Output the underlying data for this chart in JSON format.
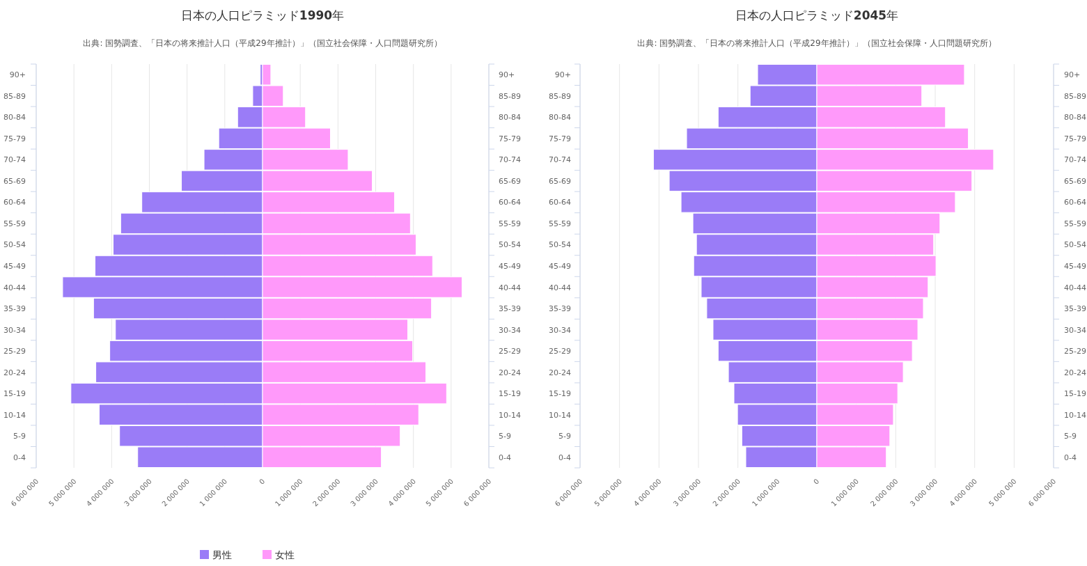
{
  "chart_data": [
    {
      "type": "bar",
      "orientation": "horizontal",
      "title": "日本の人口ピラミッド**1990**年",
      "subtitle": "出典: 国勢調査、「日本の将来推計人口（平成29年推計）」（国立社会保障・人口問題研究所）",
      "categories": [
        "90+",
        "85-89",
        "80-84",
        "75-79",
        "70-74",
        "65-69",
        "60-64",
        "55-59",
        "50-54",
        "45-49",
        "40-44",
        "35-39",
        "30-34",
        "25-29",
        "20-24",
        "15-19",
        "10-14",
        "5-9",
        "0-4"
      ],
      "series": [
        {
          "name": "男性",
          "color": "#9a7cf7",
          "values": [
            -60000,
            -260000,
            -660000,
            -1160000,
            -1550000,
            -2150000,
            -3200000,
            -3760000,
            -3960000,
            -4440000,
            -5300000,
            -4480000,
            -3900000,
            -4050000,
            -4420000,
            -5080000,
            -4330000,
            -3790000,
            -3310000
          ]
        },
        {
          "name": "女性",
          "color": "#ff99fa",
          "values": [
            220000,
            550000,
            1140000,
            1800000,
            2270000,
            2910000,
            3500000,
            3920000,
            4070000,
            4510000,
            5290000,
            4480000,
            3850000,
            3980000,
            4330000,
            4880000,
            4140000,
            3650000,
            3150000
          ]
        }
      ],
      "xlim": [
        -6000000,
        6000000
      ],
      "xticks": [
        {
          "value": -6000000,
          "label": "6 000 000"
        },
        {
          "value": -5000000,
          "label": "5 000 000"
        },
        {
          "value": -4000000,
          "label": "4 000 000"
        },
        {
          "value": -3000000,
          "label": "3 000 000"
        },
        {
          "value": -2000000,
          "label": "2 000 000"
        },
        {
          "value": -1000000,
          "label": "1 000 000"
        },
        0,
        {
          "value": 1000000,
          "label": "1 000 000"
        },
        {
          "value": 2000000,
          "label": "2 000 000"
        },
        {
          "value": 3000000,
          "label": "3 000 000"
        },
        {
          "value": 4000000,
          "label": "4 000 000"
        },
        {
          "value": 5000000,
          "label": "5 000 000"
        },
        {
          "value": 6000000,
          "label": "6 000 000"
        }
      ],
      "grid": "x",
      "legend": "bottom",
      "stacked": true
    },
    {
      "type": "bar",
      "orientation": "horizontal",
      "title": "日本の人口ピラミッド**2045**年",
      "subtitle": "出典: 国勢調査、「日本の将来推計人口（平成29年推計）」（国立社会保障・人口問題研究所）",
      "categories": [
        "90+",
        "85-89",
        "80-84",
        "75-79",
        "70-74",
        "65-69",
        "60-64",
        "55-59",
        "50-54",
        "45-49",
        "40-44",
        "35-39",
        "30-34",
        "25-29",
        "20-24",
        "15-19",
        "10-14",
        "5-9",
        "0-4"
      ],
      "series": [
        {
          "color": "#9a7cf7",
          "values": [
            -1500000,
            -1690000,
            -2500000,
            -3300000,
            -4140000,
            -3740000,
            -3440000,
            -3140000,
            -3050000,
            -3120000,
            -2930000,
            -2790000,
            -2630000,
            -2500000,
            -2240000,
            -2100000,
            -2010000,
            -1900000,
            -1800000
          ]
        },
        {
          "color": "#ff99fa",
          "values": [
            3740000,
            2660000,
            3260000,
            3840000,
            4480000,
            3930000,
            3510000,
            3120000,
            2960000,
            3020000,
            2820000,
            2700000,
            2560000,
            2420000,
            2190000,
            2050000,
            1940000,
            1850000,
            1760000
          ]
        }
      ],
      "xlim": [
        -6000000,
        6000000
      ],
      "xticks": [
        {
          "value": -6000000,
          "label": "6 000 000"
        },
        {
          "value": -5000000,
          "label": "5 000 000"
        },
        {
          "value": -4000000,
          "label": "4 000 000"
        },
        {
          "value": -3000000,
          "label": "3 000 000"
        },
        {
          "value": -2000000,
          "label": "2 000 000"
        },
        {
          "value": -1000000,
          "label": "1 000 000"
        },
        0,
        {
          "value": 1000000,
          "label": "1 000 000"
        },
        {
          "value": 2000000,
          "label": "2 000 000"
        },
        {
          "value": 3000000,
          "label": "3 000 000"
        },
        {
          "value": 4000000,
          "label": "4 000 000"
        },
        {
          "value": 5000000,
          "label": "5 000 000"
        },
        {
          "value": 6000000,
          "label": "6 000 000"
        }
      ],
      "grid": "x",
      "stacked": true
    }
  ]
}
